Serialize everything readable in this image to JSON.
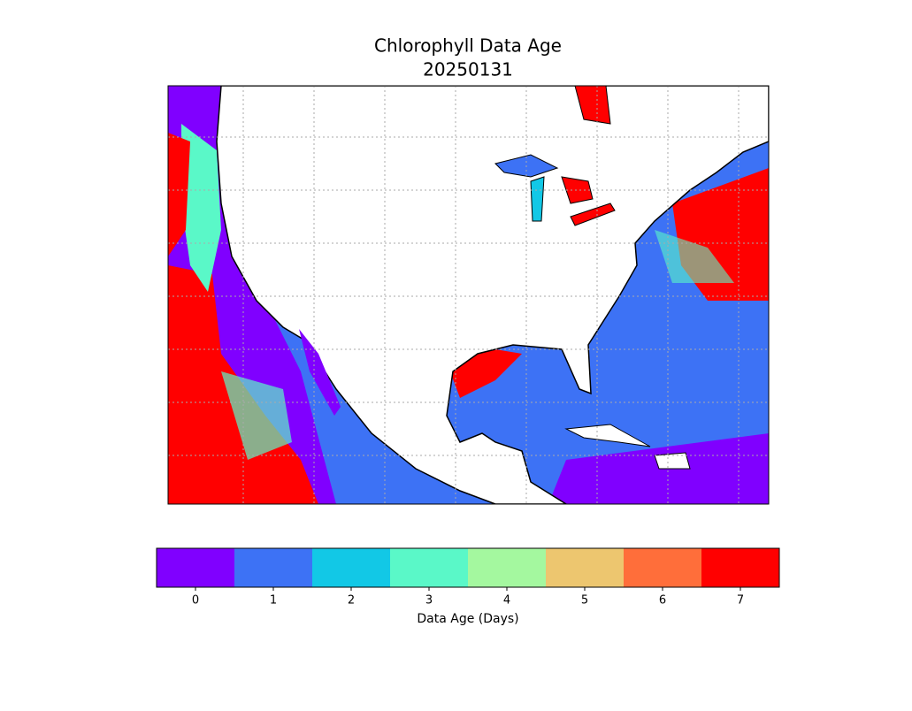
{
  "title": "Chlorophyll Data Age",
  "date": "20250131",
  "colorbar": {
    "label": "Data Age (Days)",
    "ticks": [
      0,
      1,
      2,
      3,
      4,
      5,
      6,
      7
    ],
    "colors": [
      "#8000ff",
      "#3d72f5",
      "#12c8e6",
      "#5af8c8",
      "#a4f89f",
      "#edc66f",
      "#ff6e3a",
      "#ff0000"
    ]
  }
}
